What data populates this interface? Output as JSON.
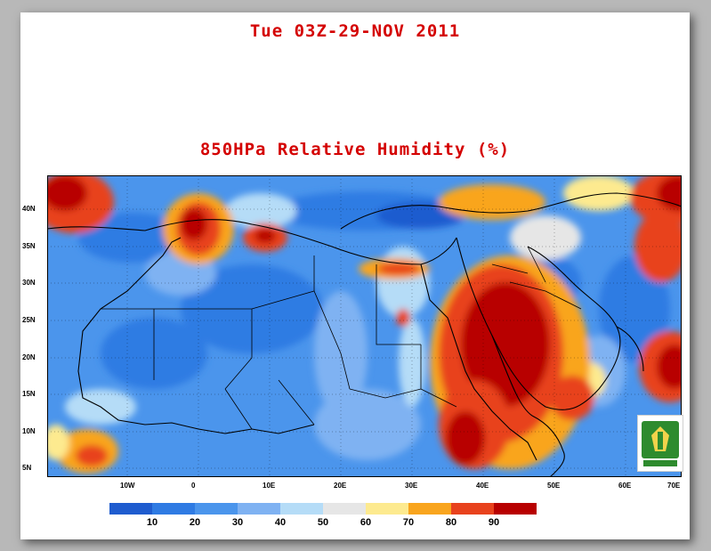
{
  "header": {
    "date_label": "Tue 03Z-29-NOV 2011",
    "title": "850HPa Relative Humidity (%)"
  },
  "map": {
    "lat_ticks": [
      "40N",
      "35N",
      "30N",
      "25N",
      "20N",
      "15N",
      "10N",
      "5N"
    ],
    "lon_ticks": [
      "10W",
      "0",
      "10E",
      "20E",
      "30E",
      "40E",
      "50E",
      "60E",
      "70E"
    ]
  },
  "colorbar": {
    "colors": [
      "#1f5ccf",
      "#2f7be3",
      "#4b95ec",
      "#7fb2f2",
      "#b5dcf7",
      "#e6e6e6",
      "#fdea8f",
      "#f9a51e",
      "#e8421d",
      "#b80000"
    ],
    "labels": [
      "10",
      "20",
      "30",
      "40",
      "50",
      "60",
      "70",
      "80",
      "90"
    ]
  },
  "logo": {
    "icon": "university-emblem-icon"
  }
}
